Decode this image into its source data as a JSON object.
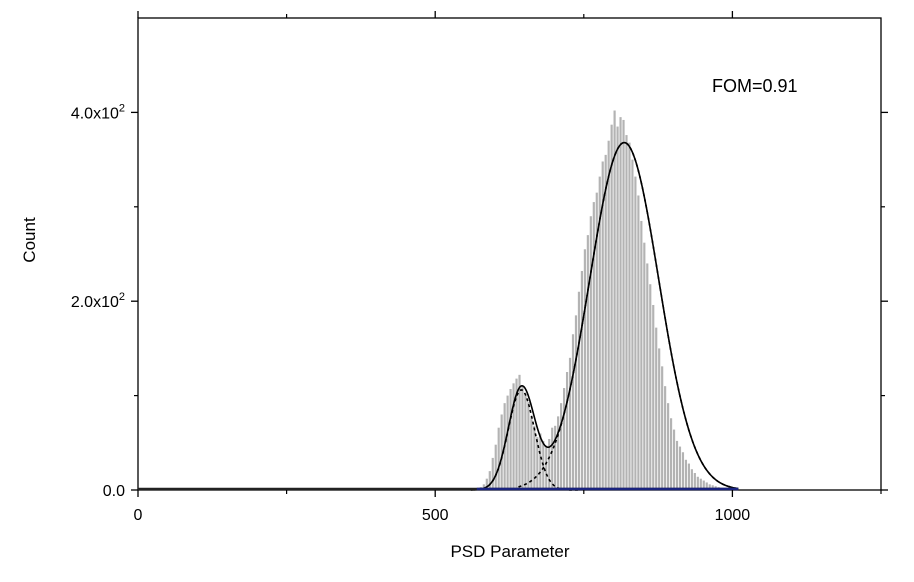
{
  "chart_data": {
    "type": "bar",
    "title": "",
    "xlabel": "PSD Parameter",
    "ylabel": "Count",
    "xlim": [
      0,
      1250
    ],
    "ylim": [
      0,
      500
    ],
    "x_ticks": [
      {
        "value": 0,
        "label": "0"
      },
      {
        "value": 500,
        "label": "500"
      },
      {
        "value": 1000,
        "label": "1000"
      }
    ],
    "y_ticks": [
      {
        "value": 0,
        "base": "0.0",
        "exp": ""
      },
      {
        "value": 200,
        "base": "2.0x10",
        "exp": "2"
      },
      {
        "value": 400,
        "base": "4.0x10",
        "exp": "2"
      }
    ],
    "annotation": "FOM=0.91",
    "bar_color": "#b3b3b3",
    "fit_color": "#000000",
    "baseline_color": "#1a237e",
    "histogram": {
      "bin_start": 570,
      "bin_width": 5,
      "counts": [
        1,
        3,
        6,
        12,
        20,
        34,
        48,
        66,
        80,
        92,
        100,
        107,
        113,
        118,
        122,
        110,
        102,
        93,
        78,
        68,
        56,
        60,
        52,
        47,
        54,
        66,
        68,
        78,
        92,
        108,
        125,
        140,
        165,
        185,
        210,
        232,
        255,
        270,
        290,
        305,
        315,
        332,
        348,
        355,
        370,
        387,
        402,
        385,
        395,
        392,
        376,
        368,
        350,
        332,
        312,
        285,
        262,
        240,
        218,
        196,
        172,
        150,
        131,
        110,
        92,
        76,
        64,
        52,
        46,
        40,
        32,
        28,
        22,
        18,
        14,
        12,
        10,
        8,
        6,
        5,
        4,
        3,
        2,
        2,
        1,
        1,
        1,
        0,
        0,
        0,
        0
      ]
    },
    "fit": {
      "peaks": [
        {
          "center": 645,
          "amplitude": 106,
          "sigma": 22
        },
        {
          "center": 818,
          "amplitude": 368,
          "sigma": 58
        }
      ]
    }
  }
}
